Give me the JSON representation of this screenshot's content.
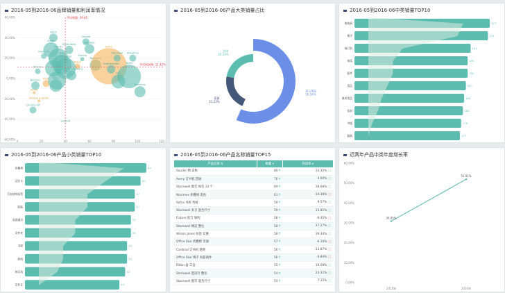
{
  "colors": {
    "teal": "#5cbcb0",
    "orange": "#f5b35a",
    "blue": "#6b8fe6",
    "navy": "#44587a",
    "red": "#e4474f"
  },
  "scatter": {
    "title": "2016-05到2016-06品牌销量和利润率情况",
    "avg_x_label": "平均销量: 39.85",
    "avg_y_label": "平均利润率: 11.42%",
    "avg_x": 39.85,
    "avg_y": 11.42,
    "chart_data": {
      "type": "scatter",
      "xlim": [
        0,
        120
      ],
      "ylim": [
        -60,
        60
      ],
      "xticks": [
        "0",
        "20",
        "40",
        "60",
        "80",
        "100",
        "120"
      ],
      "yticks": [
        "60.00%",
        "40.00%",
        "20.00%",
        "0.00%",
        "-20.00%",
        "-40.00%",
        "-60.00%"
      ],
      "points": [
        {
          "name": "Hill-X",
          "x": 30,
          "y": 40,
          "size": 6,
          "c": "teal"
        },
        {
          "name": "Smead",
          "x": 57,
          "y": 36,
          "size": 5,
          "c": "teal"
        },
        {
          "name": "Fellowes",
          "x": 60,
          "y": 29,
          "size": 7,
          "c": "teal"
        },
        {
          "name": "Globe-Weis",
          "x": 43,
          "y": 28,
          "size": 6,
          "c": "teal"
        },
        {
          "name": "Eldon",
          "x": 28,
          "y": 28,
          "size": 11,
          "c": "teal"
        },
        {
          "name": "Kleencut",
          "x": 22,
          "y": 22,
          "size": 4,
          "c": "teal"
        },
        {
          "name": "Cameo",
          "x": 54,
          "y": 19,
          "size": 3,
          "c": "teal"
        },
        {
          "name": "Novimex",
          "x": 65,
          "y": 13,
          "size": 8,
          "c": "teal"
        },
        {
          "name": "Sauder",
          "x": 34,
          "y": 20,
          "size": 14,
          "c": "teal"
        },
        {
          "name": "Safco",
          "x": 76,
          "y": 12,
          "size": 26,
          "c": "orange"
        },
        {
          "name": "Rubbermaid",
          "x": 78,
          "y": 9,
          "size": 6,
          "c": "teal"
        },
        {
          "name": "Stockwell",
          "x": 83,
          "y": 20,
          "size": 5,
          "c": "teal"
        },
        {
          "name": "Advantus",
          "x": 96,
          "y": 20,
          "size": 5,
          "c": "teal"
        },
        {
          "name": "Hon",
          "x": 84,
          "y": -3,
          "size": 10,
          "c": "teal"
        },
        {
          "name": "Tenex",
          "x": 93,
          "y": 2,
          "size": 17,
          "c": "teal"
        },
        {
          "name": "Enermax",
          "x": 102,
          "y": -13,
          "size": 8,
          "c": "teal"
        },
        {
          "name": "Avery",
          "x": 50,
          "y": 12,
          "size": 4,
          "c": "orange"
        },
        {
          "name": "Office Star",
          "x": 40,
          "y": 10,
          "size": 15,
          "c": "teal"
        },
        {
          "name": "Stanley",
          "x": 17,
          "y": 7,
          "size": 4,
          "c": "teal"
        },
        {
          "name": "Bush",
          "x": 24,
          "y": -5,
          "size": 5,
          "c": "orange"
        },
        {
          "name": "Barricks",
          "x": 15,
          "y": -7,
          "size": 6,
          "c": "teal"
        },
        {
          "name": "Acco",
          "x": 33,
          "y": -2,
          "size": 13,
          "c": "teal"
        },
        {
          "name": "Ibico",
          "x": 32,
          "y": -7,
          "size": 9,
          "c": "teal"
        },
        {
          "name": "Chromcraft",
          "x": 13,
          "y": -31,
          "size": 5,
          "c": "teal"
        },
        {
          "name": "Sanford",
          "x": 40,
          "y": -44,
          "size": 1,
          "c": "teal"
        },
        {
          "name": "Accos",
          "x": 14,
          "y": -14,
          "size": 2,
          "c": "orange"
        },
        {
          "name": "Binney & Smith",
          "x": 18,
          "y": -22,
          "size": 2,
          "c": "orange"
        },
        {
          "name": "Harbour Creations",
          "x": 45,
          "y": 3,
          "size": 7,
          "c": "teal"
        },
        {
          "name": "Eureka",
          "x": 30,
          "y": 10,
          "size": 12,
          "c": "teal"
        },
        {
          "name": "Ikea",
          "x": 37,
          "y": 14,
          "size": 14,
          "c": "teal"
        }
      ]
    }
  },
  "donut": {
    "title": "2016-05到2016-06产品大类销量占比",
    "chart_data": {
      "type": "pie",
      "slices": [
        {
          "name": "办公用品",
          "value": 56.54,
          "label": "56.54%",
          "c": "blue"
        },
        {
          "name": "家具",
          "value": 21.23,
          "label": "21.23%",
          "c": "navy"
        },
        {
          "name": "技术",
          "value": 22.24,
          "label": "22.24%",
          "c": "teal"
        }
      ]
    }
  },
  "mid_top10": {
    "title": "2016-05到2016-06中类销量TOP10",
    "chart_data": {
      "type": "bar",
      "categories": [
        "收纳具",
        "椅子",
        "装订机",
        "电话",
        "配件",
        "用品",
        "美术用品",
        "信封",
        "书架",
        "器具"
      ],
      "values": [
        227,
        224,
        195,
        190,
        190,
        187,
        184,
        182,
        179,
        177
      ]
    }
  },
  "sub_top10": {
    "title": "2016-05到2016-06产品小类销量TOP10",
    "chart_data": {
      "type": "bar",
      "categories": [
        "折叠椅",
        "记忆卡",
        "可去除的标签",
        "胶粘",
        "局部通讯",
        "文件夹",
        "书架",
        "商机",
        "装订机",
        "文件车"
      ],
      "values": [
        63,
        60,
        57,
        57,
        55,
        55,
        53,
        53,
        52,
        49
      ]
    }
  },
  "table": {
    "title": "2016-05到2016-06产品名称销量TOP15",
    "headers": [
      "产品名称",
      "数量",
      "利润率"
    ],
    "rows": [
      [
        "Sauder 椅 白色",
        "80",
        "33.32%"
      ],
      [
        "Avery 订书机 回收",
        "70",
        "4.60%"
      ],
      [
        "Stockwell 图钉 每包 12 个",
        "69",
        "38.68%"
      ],
      [
        "Novimex 折叠椅 黑色",
        "61",
        "-14.38%"
      ],
      [
        "Safco 书库 传统",
        "59",
        "9.57%"
      ],
      [
        "Stockwell 夹子 混合尺寸",
        "59",
        "15.81%"
      ],
      [
        "Fiskars 剪刀 锋利",
        "58",
        "-0.35%"
      ],
      [
        "Stockwell 橡皮 整包",
        "58",
        "37.27%"
      ],
      [
        "Wilson Jones 标签 实惠",
        "58",
        "39.34%"
      ],
      [
        "Office Star 折叠椅 可调",
        "57",
        "-6.10%"
      ],
      [
        "Cardinal 订书机 透明",
        "56",
        "-13.87%"
      ],
      [
        "Office Star 椅子 每套两件",
        "56",
        "-0.84%"
      ],
      [
        "Eldon 盒 工业",
        "55",
        "19.08%"
      ],
      [
        "Stockwell 回形针 整包",
        "54",
        "23.31%"
      ],
      [
        "Stockwell 图钉 混合尺寸",
        "54",
        "7.15%"
      ]
    ]
  },
  "growth": {
    "title": "近两年产品中类年度增长率",
    "chart_data": {
      "type": "line",
      "categories": [
        "2015年",
        "2016年"
      ],
      "values": [
        30.85,
        51.91
      ],
      "labels": [
        "30.85%",
        "51.91%"
      ],
      "ylim": [
        0,
        60
      ],
      "yticks": [
        "60.00%",
        "50.00%",
        "40.00%",
        "30.00%",
        "20.00%",
        "10.00%",
        "0.00%"
      ]
    }
  }
}
